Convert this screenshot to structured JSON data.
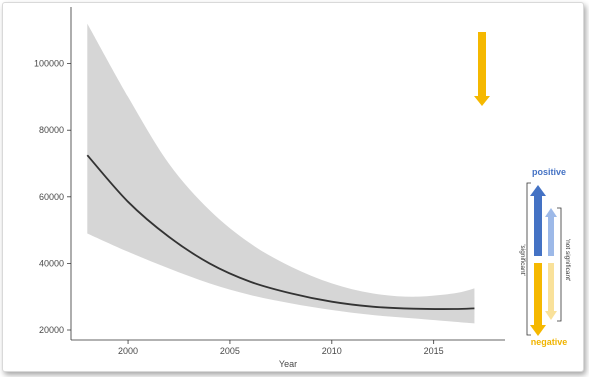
{
  "chart_data": {
    "type": "line",
    "title": "",
    "xlabel": "Year",
    "ylabel": "",
    "xlim": [
      1997.2,
      2018.5
    ],
    "ylim": [
      17000,
      117000
    ],
    "x_ticks": [
      2000,
      2005,
      2010,
      2015
    ],
    "y_ticks": [
      20000,
      40000,
      60000,
      80000,
      100000
    ],
    "grid": false,
    "series": [
      {
        "x": [
          1998,
          2000,
          2002,
          2004,
          2006,
          2008,
          2010,
          2012,
          2014,
          2016,
          2017
        ],
        "values": [
          72500,
          58500,
          48000,
          40000,
          34500,
          31000,
          28500,
          27000,
          26400,
          26300,
          26500
        ],
        "lower": [
          49000,
          43500,
          38500,
          34000,
          30500,
          28000,
          26000,
          24500,
          23500,
          22500,
          22000
        ],
        "upper": [
          112000,
          90000,
          70000,
          56000,
          46000,
          39000,
          34000,
          31000,
          30000,
          31000,
          32500
        ]
      }
    ],
    "trend_arrow": {
      "direction": "down",
      "significance": "significant",
      "color": "#f5b800"
    }
  },
  "legend": {
    "positive_label": "positive",
    "negative_label": "negative",
    "significant_label": "'significant'",
    "not_significant_label": "'not significant'",
    "colors": {
      "positive_dark": "#4472c4",
      "positive_light": "#9db9e8",
      "negative_dark": "#f5b800",
      "negative_light": "#f9e19a"
    }
  }
}
